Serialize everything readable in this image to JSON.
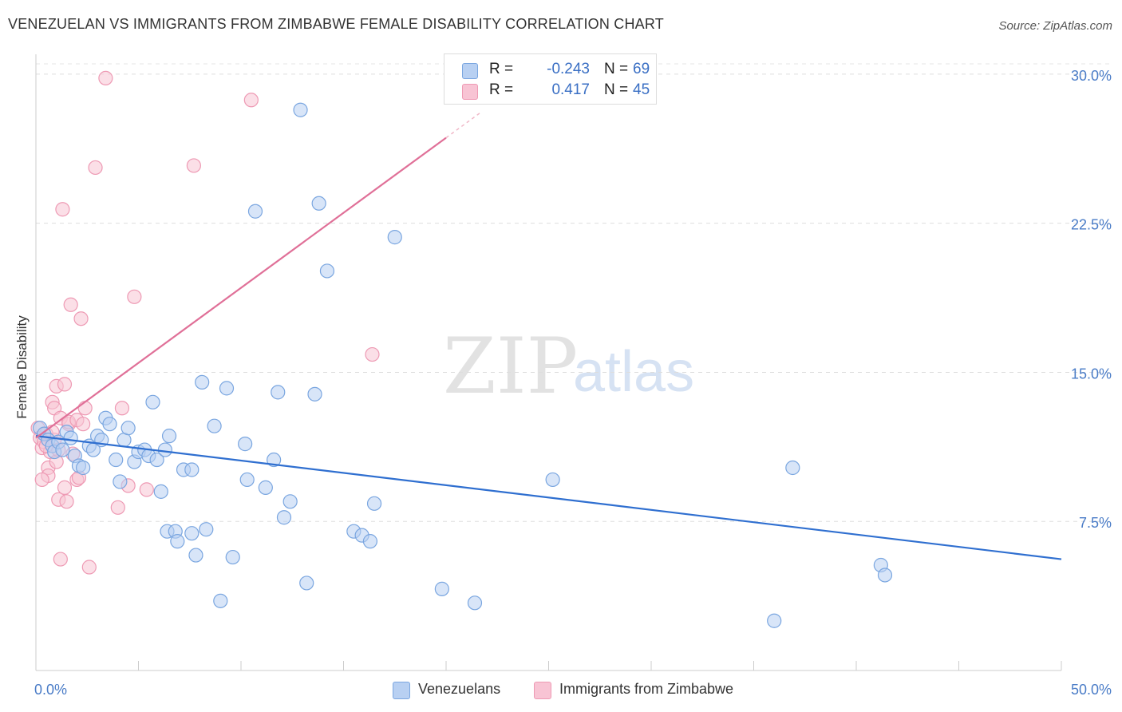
{
  "title": "VENEZUELAN VS IMMIGRANTS FROM ZIMBABWE FEMALE DISABILITY CORRELATION CHART",
  "source": "Source: ZipAtlas.com",
  "watermark": {
    "part1": "ZIP",
    "part2": "atlas"
  },
  "stats": [
    {
      "r_label": "R =",
      "r_value": "-0.243",
      "n_label": "N =",
      "n_value": "69",
      "swatch_fill": "#b8d0f2",
      "swatch_stroke": "#7aa6e0"
    },
    {
      "r_label": "R =",
      "r_value": "0.417",
      "n_label": "N =",
      "n_value": "45",
      "swatch_fill": "#f8c4d4",
      "swatch_stroke": "#ee9ab4"
    }
  ],
  "legend": [
    {
      "label": "Venezuelans",
      "fill": "#b8d0f2",
      "stroke": "#7aa6e0"
    },
    {
      "label": "Immigrants from Zimbabwe",
      "fill": "#f8c4d4",
      "stroke": "#ee9ab4"
    }
  ],
  "chart_data": {
    "type": "scatter",
    "title": "VENEZUELAN VS IMMIGRANTS FROM ZIMBABWE FEMALE DISABILITY CORRELATION CHART",
    "xlabel": "",
    "ylabel": "Female Disability",
    "xlim": [
      0,
      50
    ],
    "ylim": [
      0,
      31
    ],
    "x_tick_labels": [
      {
        "value": 0,
        "label": "0.0%"
      },
      {
        "value": 50,
        "label": "50.0%"
      }
    ],
    "y_ticks": [
      {
        "value": 7.5,
        "label": "7.5%"
      },
      {
        "value": 15,
        "label": "15.0%"
      },
      {
        "value": 22.5,
        "label": "22.5%"
      },
      {
        "value": 30,
        "label": "30.0%"
      }
    ],
    "grid": "horizontal dashed",
    "series": [
      {
        "name": "Venezuelans",
        "color": "#7aa6e0",
        "fill": "#b8d0f2",
        "trend": {
          "x": [
            0,
            50
          ],
          "y": [
            11.8,
            5.6
          ],
          "color": "#2f6fd0"
        },
        "points": [
          [
            0.2,
            12.2
          ],
          [
            0.4,
            11.9
          ],
          [
            0.6,
            11.6
          ],
          [
            0.8,
            11.3
          ],
          [
            0.9,
            11.0
          ],
          [
            1.1,
            11.5
          ],
          [
            1.3,
            11.1
          ],
          [
            1.5,
            12.0
          ],
          [
            1.7,
            11.7
          ],
          [
            1.9,
            10.8
          ],
          [
            2.1,
            10.3
          ],
          [
            2.3,
            10.2
          ],
          [
            2.6,
            11.3
          ],
          [
            2.8,
            11.1
          ],
          [
            3.0,
            11.8
          ],
          [
            3.2,
            11.6
          ],
          [
            3.4,
            12.7
          ],
          [
            3.6,
            12.4
          ],
          [
            3.9,
            10.6
          ],
          [
            4.1,
            9.5
          ],
          [
            4.3,
            11.6
          ],
          [
            4.5,
            12.2
          ],
          [
            4.8,
            10.5
          ],
          [
            5.0,
            11.0
          ],
          [
            5.3,
            11.1
          ],
          [
            5.5,
            10.8
          ],
          [
            5.7,
            13.5
          ],
          [
            5.9,
            10.6
          ],
          [
            6.1,
            9.0
          ],
          [
            6.3,
            11.1
          ],
          [
            6.5,
            11.8
          ],
          [
            6.4,
            7.0
          ],
          [
            6.8,
            7.0
          ],
          [
            6.9,
            6.5
          ],
          [
            7.2,
            10.1
          ],
          [
            7.6,
            10.1
          ],
          [
            7.6,
            6.9
          ],
          [
            7.8,
            5.8
          ],
          [
            8.1,
            14.5
          ],
          [
            8.3,
            7.1
          ],
          [
            8.7,
            12.3
          ],
          [
            9.0,
            3.5
          ],
          [
            9.3,
            14.2
          ],
          [
            9.6,
            5.7
          ],
          [
            10.2,
            11.4
          ],
          [
            10.3,
            9.6
          ],
          [
            10.7,
            23.1
          ],
          [
            11.2,
            9.2
          ],
          [
            11.6,
            10.6
          ],
          [
            11.8,
            14.0
          ],
          [
            12.1,
            7.7
          ],
          [
            12.4,
            8.5
          ],
          [
            12.9,
            28.2
          ],
          [
            13.2,
            4.4
          ],
          [
            13.6,
            13.9
          ],
          [
            13.8,
            23.5
          ],
          [
            14.2,
            20.1
          ],
          [
            15.5,
            7.0
          ],
          [
            15.9,
            6.8
          ],
          [
            16.3,
            6.5
          ],
          [
            16.5,
            8.4
          ],
          [
            17.5,
            21.8
          ],
          [
            19.8,
            4.1
          ],
          [
            21.4,
            3.4
          ],
          [
            25.2,
            9.6
          ],
          [
            36.0,
            2.5
          ],
          [
            36.9,
            10.2
          ],
          [
            41.2,
            5.3
          ],
          [
            41.4,
            4.8
          ]
        ]
      },
      {
        "name": "Immigrants from Zimbabwe",
        "color": "#ee9ab4",
        "fill": "#f8c4d4",
        "trend": {
          "x": [
            0,
            20
          ],
          "y": [
            11.7,
            26.8
          ],
          "color": "#e07098",
          "dash_extension_to_x": 21.7
        },
        "points": [
          [
            0.1,
            12.2
          ],
          [
            0.2,
            11.7
          ],
          [
            0.3,
            11.2
          ],
          [
            0.4,
            11.5
          ],
          [
            0.5,
            11.9
          ],
          [
            0.6,
            10.2
          ],
          [
            0.6,
            9.8
          ],
          [
            0.7,
            11.0
          ],
          [
            0.8,
            13.5
          ],
          [
            0.9,
            13.2
          ],
          [
            0.9,
            11.6
          ],
          [
            1.0,
            10.5
          ],
          [
            1.0,
            14.3
          ],
          [
            1.1,
            11.1
          ],
          [
            1.2,
            12.7
          ],
          [
            1.1,
            8.6
          ],
          [
            1.2,
            5.6
          ],
          [
            1.3,
            23.2
          ],
          [
            1.4,
            14.4
          ],
          [
            1.4,
            9.2
          ],
          [
            1.5,
            8.5
          ],
          [
            1.6,
            12.4
          ],
          [
            1.6,
            12.5
          ],
          [
            1.7,
            18.4
          ],
          [
            1.8,
            10.9
          ],
          [
            2.0,
            12.6
          ],
          [
            2.0,
            9.6
          ],
          [
            2.1,
            9.7
          ],
          [
            2.2,
            17.7
          ],
          [
            2.3,
            12.4
          ],
          [
            2.4,
            13.2
          ],
          [
            2.6,
            5.2
          ],
          [
            2.9,
            25.3
          ],
          [
            3.4,
            29.8
          ],
          [
            4.0,
            8.2
          ],
          [
            4.2,
            13.2
          ],
          [
            4.5,
            9.3
          ],
          [
            4.8,
            18.8
          ],
          [
            5.4,
            9.1
          ],
          [
            7.7,
            25.4
          ],
          [
            10.5,
            28.7
          ],
          [
            16.4,
            15.9
          ],
          [
            0.3,
            9.6
          ],
          [
            0.5,
            11.3
          ],
          [
            0.8,
            12.0
          ]
        ]
      }
    ]
  }
}
